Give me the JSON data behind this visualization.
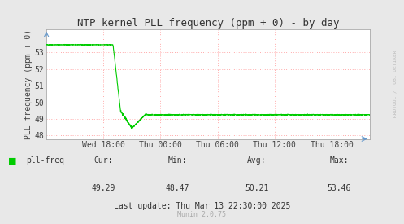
{
  "title": "NTP kernel PLL frequency (ppm + 0) - by day",
  "ylabel": "PLL frequency (ppm + 0)",
  "background_color": "#e8e8e8",
  "plot_bg_color": "#ffffff",
  "line_color": "#00cc00",
  "grid_color_major": "#ffaaaa",
  "grid_color_minor": "#ffdddd",
  "ylim": [
    47.8,
    54.4
  ],
  "yticks": [
    48,
    49,
    50,
    51,
    52,
    53
  ],
  "xlabel_ticks": [
    "Wed 18:00",
    "Thu 00:00",
    "Thu 06:00",
    "Thu 12:00",
    "Thu 18:00"
  ],
  "xtick_positions": [
    6,
    12,
    18,
    24,
    30
  ],
  "xlim": [
    0,
    34
  ],
  "cur": "49.29",
  "min": "48.47",
  "avg": "50.21",
  "max": "53.46",
  "last_update": "Last update: Thu Mar 13 22:30:00 2025",
  "legend_label": "pll-freq",
  "watermark": "RRDTOOL / TOBI OETIKER",
  "munin_version": "Munin 2.0.75",
  "title_fontsize": 9,
  "axis_fontsize": 7,
  "legend_fontsize": 7,
  "info_fontsize": 7,
  "munin_fontsize": 6
}
